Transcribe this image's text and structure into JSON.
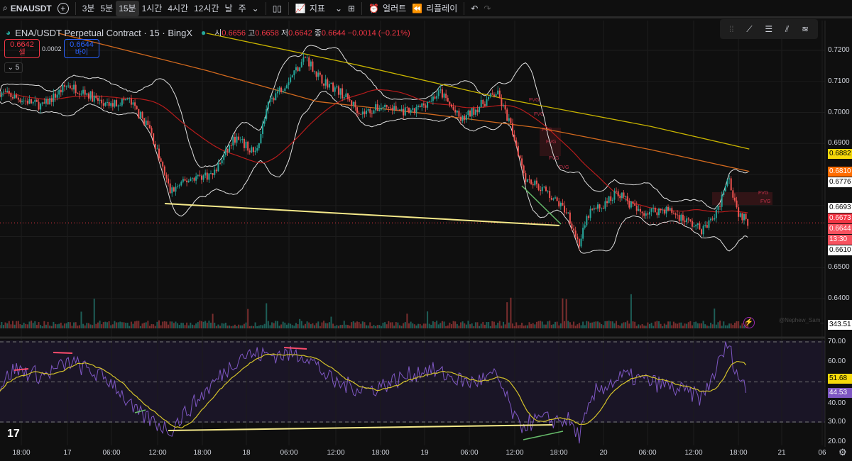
{
  "toolbar": {
    "symbol": "ENAUSDT",
    "intervals": [
      "3분",
      "5분",
      "15분",
      "1시간",
      "4시간",
      "12시간",
      "날",
      "주"
    ],
    "active_interval": "15분",
    "indicators_label": "지표",
    "alert_label": "얼러트",
    "replay_label": "리플레이"
  },
  "legend": {
    "title": "ENA/USDT Perpetual Contract · 15 · BingX",
    "o_label": "시",
    "o": "0.6656",
    "h_label": "고",
    "h": "0.6658",
    "l_label": "저",
    "l": "0.6642",
    "c_label": "종",
    "c": "0.6644",
    "change": "−0.0014 (−0.21%)"
  },
  "trade": {
    "sell_price": "0.6642",
    "sell_label": "셀",
    "spread": "0.0002",
    "buy_price": "0.6644",
    "buy_label": "바이"
  },
  "indicators_collapsed": "5",
  "watermark": "@Nephew_Sam_",
  "price_axis": [
    "0.7200",
    "0.7100",
    "0.7000",
    "0.6900",
    "0.6500",
    "0.6400"
  ],
  "price_tags": [
    {
      "value": "0.6882",
      "bg": "#f5d90a",
      "fg": "#000"
    },
    {
      "value": "0.6810",
      "bg": "#ff6d00",
      "fg": "#fff"
    },
    {
      "value": "0.6776",
      "bg": "#ffffff",
      "fg": "#000"
    },
    {
      "value": "0.6693",
      "bg": "#ffffff",
      "fg": "#000"
    },
    {
      "value": "0.6673",
      "bg": "#f23645",
      "fg": "#fff"
    },
    {
      "value": "0.6644",
      "bg": "#f7525f",
      "fg": "#fff"
    },
    {
      "value": "0.6610",
      "bg": "#ffffff",
      "fg": "#000"
    }
  ],
  "countdown": "13:30",
  "volume_tag": "343.51",
  "rsi_axis": [
    "70.00",
    "60.00",
    "40.00",
    "30.00",
    "20.00"
  ],
  "rsi_tags": [
    {
      "value": "51.68",
      "bg": "#f5d90a",
      "fg": "#000"
    },
    {
      "value": "44.53",
      "bg": "#7e57c2",
      "fg": "#fff"
    }
  ],
  "time_axis": [
    "18:00",
    "17",
    "06:00",
    "12:00",
    "18:00",
    "18",
    "06:00",
    "12:00",
    "18:00",
    "19",
    "06:00",
    "12:00",
    "18:00",
    "20",
    "06:00",
    "12:00",
    "18:00",
    "21",
    "06"
  ],
  "fvg_labels": [
    "FVG",
    "FVG",
    "FVG",
    "FVG",
    "FVG",
    "FVG",
    "FVG",
    "FVG"
  ],
  "chart_data": {
    "type": "candlestick",
    "symbol": "ENA/USDT",
    "interval": "15m",
    "price_keypoints": [
      [
        -2.9,
        0.7065
      ],
      [
        0,
        0.7042
      ],
      [
        2.9,
        0.702
      ],
      [
        6.2,
        0.7088
      ],
      [
        8.6,
        0.7065
      ],
      [
        11.5,
        0.702
      ],
      [
        14.4,
        0.7042
      ],
      [
        17.3,
        0.695
      ],
      [
        20.1,
        0.6745
      ],
      [
        23,
        0.679
      ],
      [
        25.9,
        0.68
      ],
      [
        28.8,
        0.6917
      ],
      [
        31.6,
        0.687
      ],
      [
        33.6,
        0.7042
      ],
      [
        35.5,
        0.7088
      ],
      [
        38.4,
        0.718
      ],
      [
        40.3,
        0.711
      ],
      [
        43.1,
        0.7065
      ],
      [
        46,
        0.6997
      ],
      [
        48.9,
        0.702
      ],
      [
        52.7,
        0.6997
      ],
      [
        56.6,
        0.7065
      ],
      [
        59.4,
        0.6974
      ],
      [
        64.2,
        0.7065
      ],
      [
        66.2,
        0.695
      ],
      [
        68.1,
        0.679
      ],
      [
        70.9,
        0.6745
      ],
      [
        73.8,
        0.6677
      ],
      [
        75.3,
        0.6574
      ],
      [
        76.7,
        0.6677
      ],
      [
        78.6,
        0.67
      ],
      [
        80.5,
        0.6745
      ],
      [
        83.4,
        0.6677
      ],
      [
        87.2,
        0.6688
      ],
      [
        92,
        0.662
      ],
      [
        94,
        0.6677
      ],
      [
        95.4,
        0.6802
      ],
      [
        96.8,
        0.6677
      ],
      [
        98.3,
        0.6644
      ]
    ],
    "ma_yellow": [
      [
        25,
        0.7255
      ],
      [
        45,
        0.7155
      ],
      [
        65,
        0.7045
      ],
      [
        85,
        0.6955
      ],
      [
        98.3,
        0.6882
      ]
    ],
    "ma_orange": [
      [
        5,
        0.7255
      ],
      [
        25,
        0.7135
      ],
      [
        40,
        0.7035
      ],
      [
        55,
        0.6995
      ],
      [
        70,
        0.695
      ],
      [
        85,
        0.688
      ],
      [
        98.3,
        0.681
      ]
    ],
    "rsi_keypoints": [
      [
        -2.9,
        47.7
      ],
      [
        -1,
        56.5
      ],
      [
        2.9,
        53
      ],
      [
        6.7,
        60
      ],
      [
        12.5,
        49.5
      ],
      [
        15.3,
        35
      ],
      [
        20.1,
        26
      ],
      [
        24,
        42
      ],
      [
        29.7,
        63.6
      ],
      [
        35.5,
        63.6
      ],
      [
        38.4,
        63.6
      ],
      [
        42.2,
        49.5
      ],
      [
        47,
        46
      ],
      [
        54.7,
        56.5
      ],
      [
        60.4,
        49.5
      ],
      [
        64.2,
        53
      ],
      [
        67.1,
        28
      ],
      [
        70,
        31
      ],
      [
        73.8,
        31
      ],
      [
        75.3,
        23
      ],
      [
        77.7,
        46
      ],
      [
        81.5,
        53
      ],
      [
        87.2,
        48
      ],
      [
        92,
        42
      ],
      [
        95.4,
        69
      ],
      [
        96.8,
        53
      ],
      [
        97.9,
        46
      ]
    ],
    "rsi_levels": [
      70,
      50,
      30
    ],
    "price_range": [
      0.636,
      0.7275
    ],
    "rsi_range": [
      17,
      72
    ]
  }
}
